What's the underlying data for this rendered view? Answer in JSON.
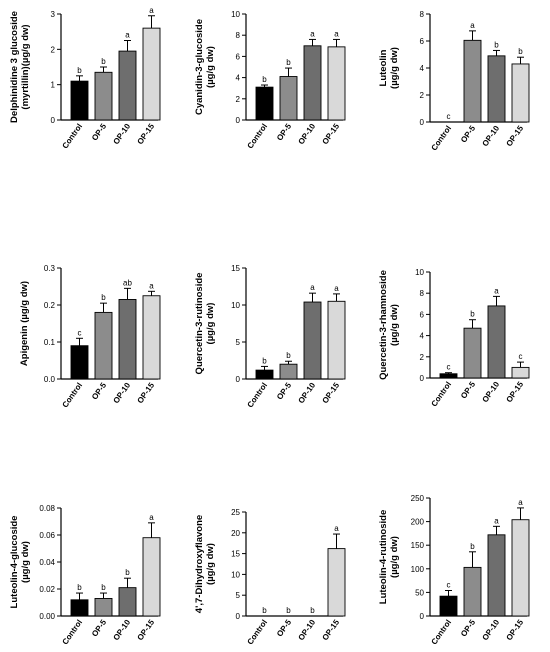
{
  "colors": [
    "#000000",
    "#8c8c8c",
    "#6e6e6e",
    "#d9d9d9"
  ],
  "chart_data": [
    {
      "type": "bar",
      "ylabel": [
        "Delphinidine 3 glucoside",
        "(myrtillin)(µg/g dw)"
      ],
      "categories": [
        "Control",
        "OP-5",
        "OP-10",
        "OP-15"
      ],
      "values": [
        1.1,
        1.35,
        1.95,
        2.6
      ],
      "errors": [
        0.15,
        0.15,
        0.3,
        0.35
      ],
      "letters": [
        "b",
        "b",
        "a",
        "a"
      ],
      "ylim": [
        0,
        3
      ],
      "yticks": [
        "0",
        "1",
        "2",
        "3"
      ]
    },
    {
      "type": "bar",
      "ylabel": [
        "Cyanidin-3-glucoside",
        "(µg/g dw)"
      ],
      "categories": [
        "Control",
        "OP-5",
        "OP-10",
        "OP-15"
      ],
      "values": [
        3.1,
        4.1,
        7.0,
        6.9
      ],
      "errors": [
        0.2,
        0.8,
        0.6,
        0.7
      ],
      "letters": [
        "b",
        "b",
        "a",
        "a"
      ],
      "ylim": [
        0,
        10
      ],
      "yticks": [
        "0",
        "2",
        "4",
        "6",
        "8",
        "10"
      ]
    },
    {
      "type": "bar",
      "ylabel": [
        "Luteolin",
        "(µg/g dw)"
      ],
      "categories": [
        "Control",
        "OP-5",
        "OP-10",
        "OP-15"
      ],
      "values": [
        0,
        6.05,
        4.9,
        4.3
      ],
      "errors": [
        0,
        0.7,
        0.4,
        0.5
      ],
      "letters": [
        "c",
        "a",
        "b",
        "b"
      ],
      "ylim": [
        0,
        8
      ],
      "yticks": [
        "0",
        "2",
        "4",
        "6",
        "8"
      ]
    },
    {
      "type": "bar",
      "ylabel": [
        "Apigenin (µg/g dw)"
      ],
      "categories": [
        "Control",
        "OP-5",
        "OP-10",
        "OP-15"
      ],
      "values": [
        0.09,
        0.18,
        0.215,
        0.225
      ],
      "errors": [
        0.02,
        0.025,
        0.03,
        0.012
      ],
      "letters": [
        "c",
        "b",
        "ab",
        "a"
      ],
      "ylim": [
        0,
        0.3
      ],
      "yticks": [
        "0.0",
        "0.1",
        "0.2",
        "0.3"
      ]
    },
    {
      "type": "bar",
      "ylabel": [
        "Quercetin-3-rutinoside",
        "(µg/g dw)"
      ],
      "categories": [
        "Control",
        "OP-5",
        "OP-10",
        "OP-15"
      ],
      "values": [
        1.2,
        2.0,
        10.4,
        10.5
      ],
      "errors": [
        0.5,
        0.4,
        1.2,
        1.0
      ],
      "letters": [
        "b",
        "b",
        "a",
        "a"
      ],
      "ylim": [
        0,
        15
      ],
      "yticks": [
        "0",
        "5",
        "10",
        "15"
      ]
    },
    {
      "type": "bar",
      "ylabel": [
        "Quercetin-3-rhamnoside",
        "(µg/g dw)"
      ],
      "categories": [
        "Control",
        "OP-5",
        "OP-10",
        "OP-15"
      ],
      "values": [
        0.4,
        4.7,
        6.8,
        1.0
      ],
      "errors": [
        0.1,
        0.8,
        0.9,
        0.5
      ],
      "letters": [
        "c",
        "b",
        "a",
        "c"
      ],
      "ylim": [
        0,
        10
      ],
      "yticks": [
        "0",
        "2",
        "4",
        "6",
        "8",
        "10"
      ]
    },
    {
      "type": "bar",
      "ylabel": [
        "Luteolin-4-glucoside",
        "(µg/g dw)"
      ],
      "categories": [
        "Control",
        "OP-5",
        "OP-10",
        "OP-15"
      ],
      "values": [
        0.012,
        0.013,
        0.021,
        0.058
      ],
      "errors": [
        0.005,
        0.004,
        0.007,
        0.011
      ],
      "letters": [
        "b",
        "b",
        "b",
        "a"
      ],
      "ylim": [
        0,
        0.08
      ],
      "yticks": [
        "0.00",
        "0.02",
        "0.04",
        "0.06",
        "0.08"
      ]
    },
    {
      "type": "bar",
      "ylabel": [
        "4',7-Dihydroxyflavone",
        "(µg/g dw)"
      ],
      "categories": [
        "Control",
        "OP-5",
        "OP-10",
        "OP-15"
      ],
      "values": [
        0,
        0,
        0,
        16.2
      ],
      "errors": [
        0,
        0,
        0,
        3.5
      ],
      "letters": [
        "b",
        "b",
        "b",
        "a"
      ],
      "ylim": [
        0,
        25
      ],
      "yticks": [
        "0",
        "5",
        "10",
        "15",
        "20",
        "25"
      ]
    },
    {
      "type": "bar",
      "ylabel": [
        "Luteolin-4-rutinoside",
        "(µg/g dw)"
      ],
      "categories": [
        "Control",
        "OP-5",
        "OP-10",
        "OP-15"
      ],
      "values": [
        42,
        103,
        172,
        204
      ],
      "errors": [
        12,
        33,
        18,
        25
      ],
      "letters": [
        "c",
        "b",
        "a",
        "a"
      ],
      "ylim": [
        0,
        250
      ],
      "yticks": [
        "0",
        "50",
        "100",
        "150",
        "200",
        "250"
      ]
    }
  ]
}
